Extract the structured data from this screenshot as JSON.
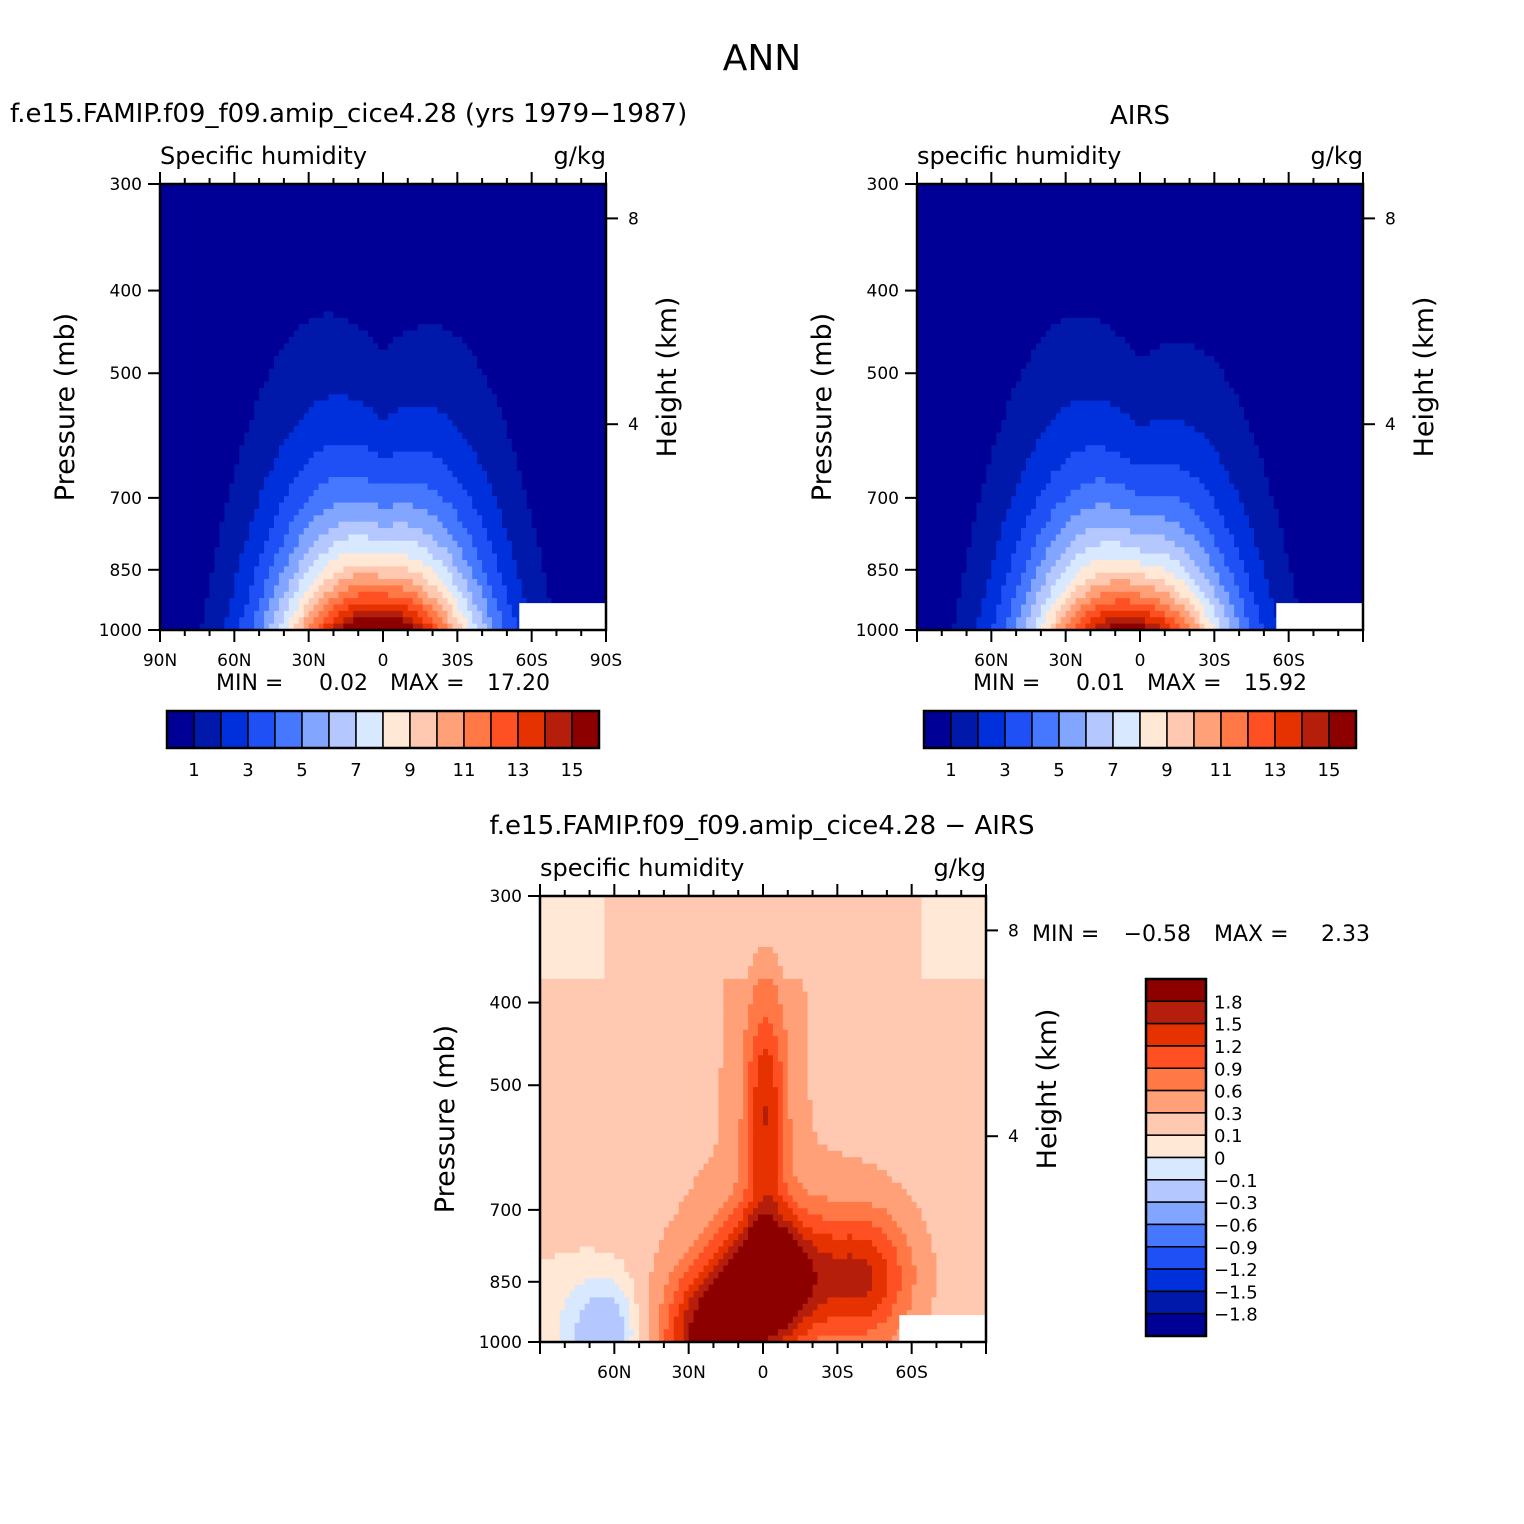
{
  "figure": {
    "title": "ANN"
  },
  "chart_data": [
    {
      "type": "heatmap",
      "id": "model",
      "header": "f.e15.FAMIP.f09_f09.amip_cice4.28 (yrs 1979−1987)",
      "variable": "Specific humidity",
      "units": "g/kg",
      "ylabel": "Pressure (mb)",
      "ylabel_right": "Height (km)",
      "lat_range": [
        90,
        -90
      ],
      "pressure_range": [
        300,
        1000
      ],
      "x_tick_labels": [
        {
          "lat": 90,
          "label": "90N"
        },
        {
          "lat": 60,
          "label": "60N"
        },
        {
          "lat": 30,
          "label": "30N"
        },
        {
          "lat": 0,
          "label": "0"
        },
        {
          "lat": -30,
          "label": "30S"
        },
        {
          "lat": -60,
          "label": "60S"
        },
        {
          "lat": -90,
          "label": "90S"
        }
      ],
      "y_tick_labels": [
        "300",
        "400",
        "500",
        "700",
        "850",
        "1000"
      ],
      "y_ticks": [
        300,
        400,
        500,
        700,
        850,
        1000
      ],
      "height_ticks": [
        {
          "km": 8,
          "label": "8"
        },
        {
          "km": 4,
          "label": "4"
        }
      ],
      "min_label": "MIN =",
      "min_value": "0.02",
      "max_label": "MAX =",
      "max_value": "17.20",
      "peak": {
        "lat": 2,
        "pressure": 1000,
        "value": 17.2
      },
      "source_scale": "specific_humidity"
    },
    {
      "type": "heatmap",
      "id": "obs",
      "header": "AIRS",
      "variable": "specific humidity",
      "units": "g/kg",
      "ylabel": "Pressure (mb)",
      "ylabel_right": "Height (km)",
      "lat_range": [
        90,
        -90
      ],
      "pressure_range": [
        300,
        1000
      ],
      "x_tick_labels": [
        {
          "lat": 60,
          "label": "60N"
        },
        {
          "lat": 30,
          "label": "30N"
        },
        {
          "lat": 0,
          "label": "0"
        },
        {
          "lat": -30,
          "label": "30S"
        },
        {
          "lat": -60,
          "label": "60S"
        }
      ],
      "y_tick_labels": [
        "300",
        "400",
        "500",
        "700",
        "850",
        "1000"
      ],
      "y_ticks": [
        300,
        400,
        500,
        700,
        850,
        1000
      ],
      "height_ticks": [
        {
          "km": 8,
          "label": "8"
        },
        {
          "km": 4,
          "label": "4"
        }
      ],
      "min_label": "MIN =",
      "min_value": "0.01",
      "max_label": "MAX =",
      "max_value": "15.92",
      "peak": {
        "lat": 5,
        "pressure": 1000,
        "value": 15.92
      },
      "source_scale": "specific_humidity"
    },
    {
      "type": "heatmap",
      "id": "diff",
      "header": "f.e15.FAMIP.f09_f09.amip_cice4.28 − AIRS",
      "variable": "specific humidity",
      "units": "g/kg",
      "ylabel": "Pressure (mb)",
      "ylabel_right": "Height (km)",
      "lat_range": [
        90,
        -90
      ],
      "pressure_range": [
        300,
        1000
      ],
      "x_tick_labels": [
        {
          "lat": 60,
          "label": "60N"
        },
        {
          "lat": 30,
          "label": "30N"
        },
        {
          "lat": 0,
          "label": "0"
        },
        {
          "lat": -30,
          "label": "30S"
        },
        {
          "lat": -60,
          "label": "60S"
        }
      ],
      "y_tick_labels": [
        "300",
        "400",
        "500",
        "700",
        "850",
        "1000"
      ],
      "y_ticks": [
        300,
        400,
        500,
        700,
        850,
        1000
      ],
      "height_ticks": [
        {
          "km": 8,
          "label": "8"
        },
        {
          "km": 4,
          "label": "4"
        }
      ],
      "min_label": "MIN =",
      "min_value": "−0.58",
      "max_label": "MAX =",
      "max_value": "2.33",
      "features": [
        {
          "lat": -3,
          "pressure": 840,
          "value": 2.3
        },
        {
          "lat": -1,
          "pressure": 540,
          "value": 1.2
        },
        {
          "lat": -40,
          "pressure": 840,
          "value": 1.3
        },
        {
          "lat": 20,
          "pressure": 990,
          "value": 1.9
        },
        {
          "lat": 62,
          "pressure": 980,
          "value": -0.4
        }
      ],
      "source_scale": "difference"
    }
  ],
  "scales": {
    "specific_humidity": {
      "orientation": "horizontal",
      "levels": [
        1,
        2,
        3,
        4,
        5,
        6,
        7,
        8,
        9,
        10,
        11,
        12,
        13,
        14,
        15
      ],
      "tick_labels": [
        "1",
        "3",
        "5",
        "7",
        "9",
        "11",
        "13",
        "15"
      ],
      "colors": [
        "#000096",
        "#0019aa",
        "#0030dc",
        "#1e50f5",
        "#4678ff",
        "#82a5ff",
        "#b4c8ff",
        "#d8e8ff",
        "#ffe8d5",
        "#ffc8b0",
        "#ffa078",
        "#ff7846",
        "#ff5023",
        "#e63200",
        "#b41e0a",
        "#8c0000"
      ]
    },
    "difference": {
      "orientation": "vertical",
      "levels": [
        -1.8,
        -1.5,
        -1.2,
        -0.9,
        -0.6,
        -0.3,
        -0.1,
        0,
        0.1,
        0.3,
        0.6,
        0.9,
        1.2,
        1.5,
        1.8
      ],
      "tick_labels": [
        "1.8",
        "1.5",
        "1.2",
        "0.9",
        "0.6",
        "0.3",
        "0.1",
        "0",
        "−0.1",
        "−0.3",
        "−0.6",
        "−0.9",
        "−1.2",
        "−1.5",
        "−1.8"
      ],
      "colors": [
        "#000096",
        "#0019aa",
        "#0030dc",
        "#1e50f5",
        "#4678ff",
        "#82a5ff",
        "#b4c8ff",
        "#d8e8ff",
        "#ffe8d5",
        "#ffc8b0",
        "#ffa078",
        "#ff7846",
        "#ff5023",
        "#e63200",
        "#b41e0a",
        "#8c0000"
      ]
    }
  }
}
